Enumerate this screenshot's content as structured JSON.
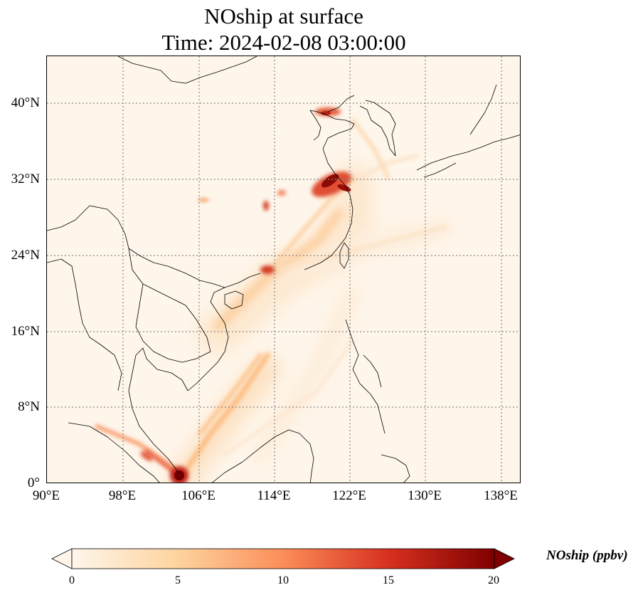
{
  "title": {
    "line1": "NOship at surface",
    "line2": "Time: 2024-02-08 03:00:00"
  },
  "axes": {
    "y_ticks": [
      "40°N",
      "32°N",
      "24°N",
      "16°N",
      "8°N",
      "0°"
    ],
    "x_ticks": [
      "90°E",
      "98°E",
      "106°E",
      "114°E",
      "122°E",
      "130°E",
      "138°E"
    ]
  },
  "colorbar": {
    "label": "NOship (ppbv)",
    "ticks": [
      "0",
      "5",
      "10",
      "15",
      "20"
    ],
    "colors": [
      "#fff5eb",
      "#fdd49e",
      "#fc8d59",
      "#d7301f",
      "#7f0000"
    ],
    "extend": "both"
  },
  "colors": {
    "background": "#fef6eb",
    "coastline": "#000000",
    "grid": "#888888"
  }
}
